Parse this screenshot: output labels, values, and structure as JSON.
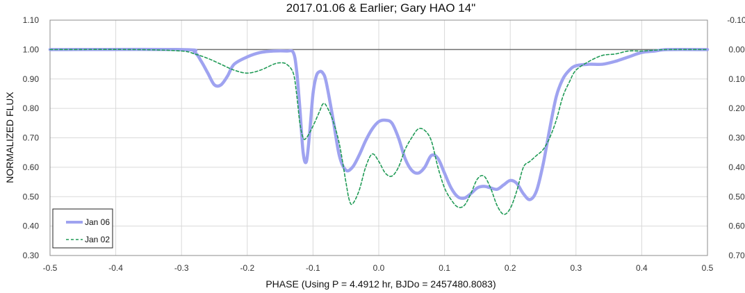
{
  "chart_data": {
    "type": "line",
    "title": "2017.01.06 & Earlier; Gary HAO 14\"",
    "xlabel": "PHASE (Using P = 4.4912 hr, BJDo = 2457480.8083)",
    "ylabel": "NORMALIZED FLUX",
    "xlim": [
      -0.5,
      0.5
    ],
    "ylim": [
      0.3,
      1.1
    ],
    "y2lim": [
      0.7,
      -0.1
    ],
    "x_ticks": [
      "-0.5",
      "-0.4",
      "-0.3",
      "-0.2",
      "-0.1",
      "0.0",
      "0.1",
      "0.2",
      "0.3",
      "0.4",
      "0.5"
    ],
    "y_ticks": [
      "1.10",
      "1.00",
      "0.90",
      "0.80",
      "0.70",
      "0.60",
      "0.50",
      "0.40",
      "0.30"
    ],
    "y2_ticks": [
      "-0.10",
      "0.00",
      "0.10",
      "0.20",
      "0.30",
      "0.40",
      "0.50",
      "0.60",
      "0.70"
    ],
    "grid": true,
    "legend_position": "bottom-left",
    "reference_line": 1.0,
    "colors": {
      "jan06": "#9fa3f0",
      "jan02": "#1f9a55",
      "reference": "#707070",
      "grid": "#d9d9d9"
    },
    "series": [
      {
        "name": "Jan 06",
        "style": "solid",
        "x": [
          -0.5,
          -0.3,
          -0.28,
          -0.27,
          -0.26,
          -0.25,
          -0.24,
          -0.23,
          -0.22,
          -0.2,
          -0.18,
          -0.16,
          -0.14,
          -0.13,
          -0.125,
          -0.12,
          -0.115,
          -0.11,
          -0.105,
          -0.1,
          -0.095,
          -0.09,
          -0.085,
          -0.08,
          -0.07,
          -0.06,
          -0.05,
          -0.04,
          -0.03,
          -0.02,
          -0.01,
          0.0,
          0.01,
          0.02,
          0.03,
          0.04,
          0.05,
          0.06,
          0.07,
          0.08,
          0.09,
          0.1,
          0.11,
          0.12,
          0.13,
          0.14,
          0.15,
          0.16,
          0.17,
          0.18,
          0.19,
          0.2,
          0.21,
          0.22,
          0.23,
          0.24,
          0.25,
          0.26,
          0.27,
          0.28,
          0.29,
          0.3,
          0.32,
          0.34,
          0.36,
          0.38,
          0.4,
          0.42,
          0.44,
          0.5
        ],
        "y": [
          1.0,
          1.0,
          0.99,
          0.96,
          0.92,
          0.88,
          0.88,
          0.91,
          0.95,
          0.975,
          0.99,
          0.995,
          0.995,
          0.99,
          0.93,
          0.8,
          0.65,
          0.62,
          0.72,
          0.85,
          0.91,
          0.925,
          0.92,
          0.89,
          0.77,
          0.64,
          0.59,
          0.6,
          0.64,
          0.69,
          0.73,
          0.755,
          0.76,
          0.75,
          0.7,
          0.63,
          0.59,
          0.58,
          0.6,
          0.64,
          0.63,
          0.58,
          0.53,
          0.5,
          0.495,
          0.51,
          0.53,
          0.535,
          0.53,
          0.525,
          0.54,
          0.555,
          0.545,
          0.51,
          0.49,
          0.52,
          0.61,
          0.73,
          0.84,
          0.9,
          0.93,
          0.945,
          0.95,
          0.95,
          0.96,
          0.975,
          0.99,
          0.995,
          1.0,
          1.0
        ]
      },
      {
        "name": "Jan 02",
        "style": "dashed",
        "x": [
          -0.5,
          -0.37,
          -0.3,
          -0.28,
          -0.26,
          -0.24,
          -0.22,
          -0.2,
          -0.18,
          -0.16,
          -0.15,
          -0.14,
          -0.13,
          -0.125,
          -0.12,
          -0.115,
          -0.11,
          -0.1,
          -0.09,
          -0.085,
          -0.08,
          -0.07,
          -0.06,
          -0.05,
          -0.045,
          -0.04,
          -0.03,
          -0.02,
          -0.01,
          0.0,
          0.01,
          0.02,
          0.03,
          0.04,
          0.05,
          0.06,
          0.07,
          0.08,
          0.09,
          0.1,
          0.11,
          0.12,
          0.13,
          0.14,
          0.15,
          0.16,
          0.17,
          0.18,
          0.19,
          0.2,
          0.21,
          0.22,
          0.23,
          0.24,
          0.25,
          0.26,
          0.27,
          0.28,
          0.29,
          0.3,
          0.32,
          0.34,
          0.36,
          0.38,
          0.4,
          0.42,
          0.44,
          0.5
        ],
        "y": [
          1.0,
          1.0,
          0.995,
          0.985,
          0.97,
          0.95,
          0.93,
          0.92,
          0.93,
          0.95,
          0.955,
          0.95,
          0.92,
          0.85,
          0.75,
          0.7,
          0.7,
          0.74,
          0.79,
          0.815,
          0.81,
          0.76,
          0.68,
          0.55,
          0.49,
          0.475,
          0.52,
          0.6,
          0.645,
          0.62,
          0.58,
          0.57,
          0.6,
          0.66,
          0.7,
          0.73,
          0.725,
          0.69,
          0.6,
          0.53,
          0.49,
          0.465,
          0.47,
          0.51,
          0.56,
          0.57,
          0.53,
          0.47,
          0.44,
          0.46,
          0.52,
          0.6,
          0.62,
          0.64,
          0.66,
          0.7,
          0.76,
          0.84,
          0.89,
          0.93,
          0.96,
          0.98,
          0.985,
          0.995,
          0.995,
          0.998,
          1.0,
          1.0
        ]
      }
    ]
  }
}
